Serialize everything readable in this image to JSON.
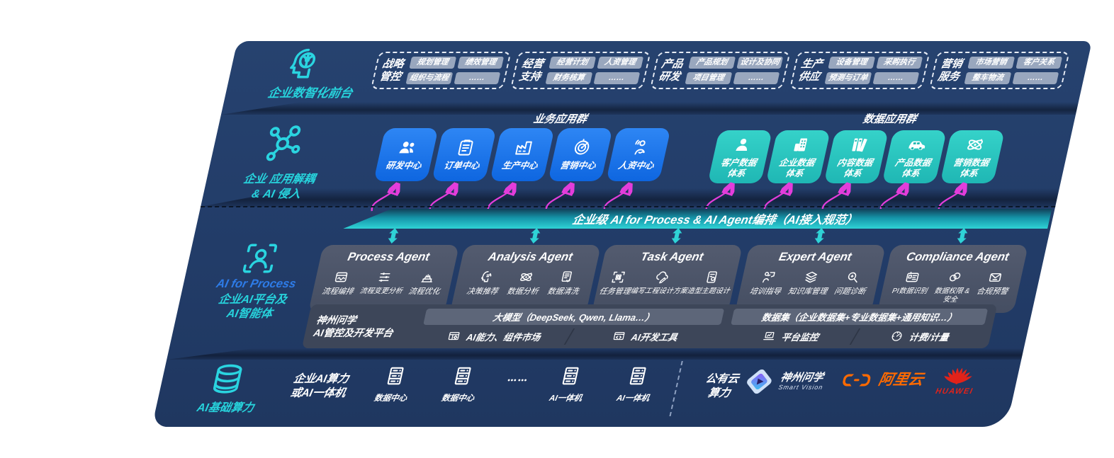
{
  "front_office": {
    "label": "企业数智化前台",
    "icon": "brain-head-icon",
    "groups": [
      {
        "name": "战略\n管控",
        "items": [
          "规划管理",
          "绩效管理",
          "组织与流程",
          "……"
        ]
      },
      {
        "name": "经营\n支持",
        "items": [
          "经营计划",
          "人资管理",
          "财务核算",
          "……"
        ]
      },
      {
        "name": "产品\n研发",
        "items": [
          "产品规划",
          "设计及协同",
          "项目管理",
          "……"
        ]
      },
      {
        "name": "生产\n供应",
        "items": [
          "设备管理",
          "采购执行",
          "预测与订单",
          "……"
        ]
      },
      {
        "name": "营销\n服务",
        "items": [
          "市场营销",
          "客户关系",
          "整车物流",
          "……"
        ]
      }
    ]
  },
  "app_layer": {
    "label": "企业 应用解耦\n& AI 侵入",
    "icon": "molecule-icon",
    "business_group_title": "业务应用群",
    "data_group_title": "数据应用群",
    "business_apps": [
      {
        "label": "研发中心",
        "icon": "team-icon"
      },
      {
        "label": "订单中心",
        "icon": "clipboard-icon"
      },
      {
        "label": "生产中心",
        "icon": "factory-icon"
      },
      {
        "label": "营销中心",
        "icon": "target-icon"
      },
      {
        "label": "人资中心",
        "icon": "person-wave-icon"
      }
    ],
    "data_apps": [
      {
        "label": "客户数据\n体系",
        "icon": "person-icon"
      },
      {
        "label": "企业数据\n体系",
        "icon": "building-icon"
      },
      {
        "label": "内容数据\n体系",
        "icon": "books-icon"
      },
      {
        "label": "产品数据\n体系",
        "icon": "car-icon"
      },
      {
        "label": "营销数据\n体系",
        "icon": "atom-icon"
      }
    ]
  },
  "ai_bus": {
    "label": "企业级 AI for Process & AI Agent编排（AI接入规范）"
  },
  "agent_layer": {
    "icon": "person-scan-icon",
    "title": "AI for Process",
    "subtitle": "企业AI平台及\nAI智能体",
    "agents": [
      {
        "title": "Process Agent",
        "items": [
          {
            "label": "流程编排",
            "icon": "box-wave-icon"
          },
          {
            "label": "流程变更分析",
            "icon": "sliders-icon"
          },
          {
            "label": "流程优化",
            "icon": "tier-stack-icon"
          }
        ]
      },
      {
        "title": "Analysis Agent",
        "items": [
          {
            "label": "决策推荐",
            "icon": "head-idea-icon"
          },
          {
            "label": "数据分析",
            "icon": "atom-icon"
          },
          {
            "label": "数据清洗",
            "icon": "doc-clean-icon"
          }
        ]
      },
      {
        "title": "Task Agent",
        "items": [
          {
            "label": "任务管理",
            "icon": "qr-scan-icon"
          },
          {
            "label": "编写工程设计方案",
            "icon": "cloud-pen-icon"
          },
          {
            "label": "造型主题设计",
            "icon": "tablet-design-icon"
          }
        ]
      },
      {
        "title": "Expert Agent",
        "items": [
          {
            "label": "培训指导",
            "icon": "trainer-icon"
          },
          {
            "label": "知识库管理",
            "icon": "layers-icon"
          },
          {
            "label": "问题诊断",
            "icon": "diagnose-icon"
          }
        ]
      },
      {
        "title": "Compliance Agent",
        "items": [
          {
            "label": "PI数据识别",
            "icon": "id-card-icon"
          },
          {
            "label": "数据权限 &\n安全",
            "icon": "rings-icon"
          },
          {
            "label": "合规预警",
            "icon": "mail-alert-icon"
          }
        ]
      }
    ]
  },
  "platform": {
    "label": "神州问学\nAI管控及开发平台",
    "model_bar": "大模型（DeepSeek, Qwen, Llama…）",
    "dataset_bar": "数据集（企业数据集+专业数据集+通用知识…）",
    "left_chips": [
      {
        "label": "AI能力、组件市场",
        "icon": "grid-gear-icon"
      },
      {
        "label": "AI开发工具",
        "icon": "window-code-icon"
      }
    ],
    "right_chips": [
      {
        "label": "平台监控",
        "icon": "laptop-chart-icon"
      },
      {
        "label": "计费/计量",
        "icon": "gauge-icon"
      }
    ]
  },
  "infra": {
    "label": "AI基础算力",
    "icon": "database-icon",
    "compute_label": "企业AI算力\n或AI一体机",
    "nodes": [
      {
        "label": "数据中心",
        "icon": "server-icon"
      },
      {
        "label": "数据中心",
        "icon": "server-icon"
      },
      {
        "label": "",
        "icon": "dots-icon"
      },
      {
        "label": "AI一体机",
        "icon": "server-icon"
      },
      {
        "label": "AI一体机",
        "icon": "server-icon"
      }
    ],
    "public_cloud_label": "公有云\n算力",
    "partners": [
      {
        "name": "神州问学",
        "sub": "Smart Vision",
        "icon": "smartvision-logo"
      },
      {
        "name": "阿里云",
        "icon": "aliyun-logo"
      },
      {
        "name": "HUAWEI",
        "icon": "huawei-logo"
      }
    ]
  },
  "colors": {
    "board_navy": "#213a66",
    "card_blue": "#1677f0",
    "card_teal": "#2bc7c1",
    "bus_teal": "#2fd3d6",
    "arrow_magenta": "#e33ddb",
    "accent_teal": "#2ad4e0",
    "accent_blue": "#2e7ce8",
    "agent_card_gray": "#4a5267",
    "aliyun_orange": "#ff6a00",
    "huawei_red": "#e2231a"
  }
}
